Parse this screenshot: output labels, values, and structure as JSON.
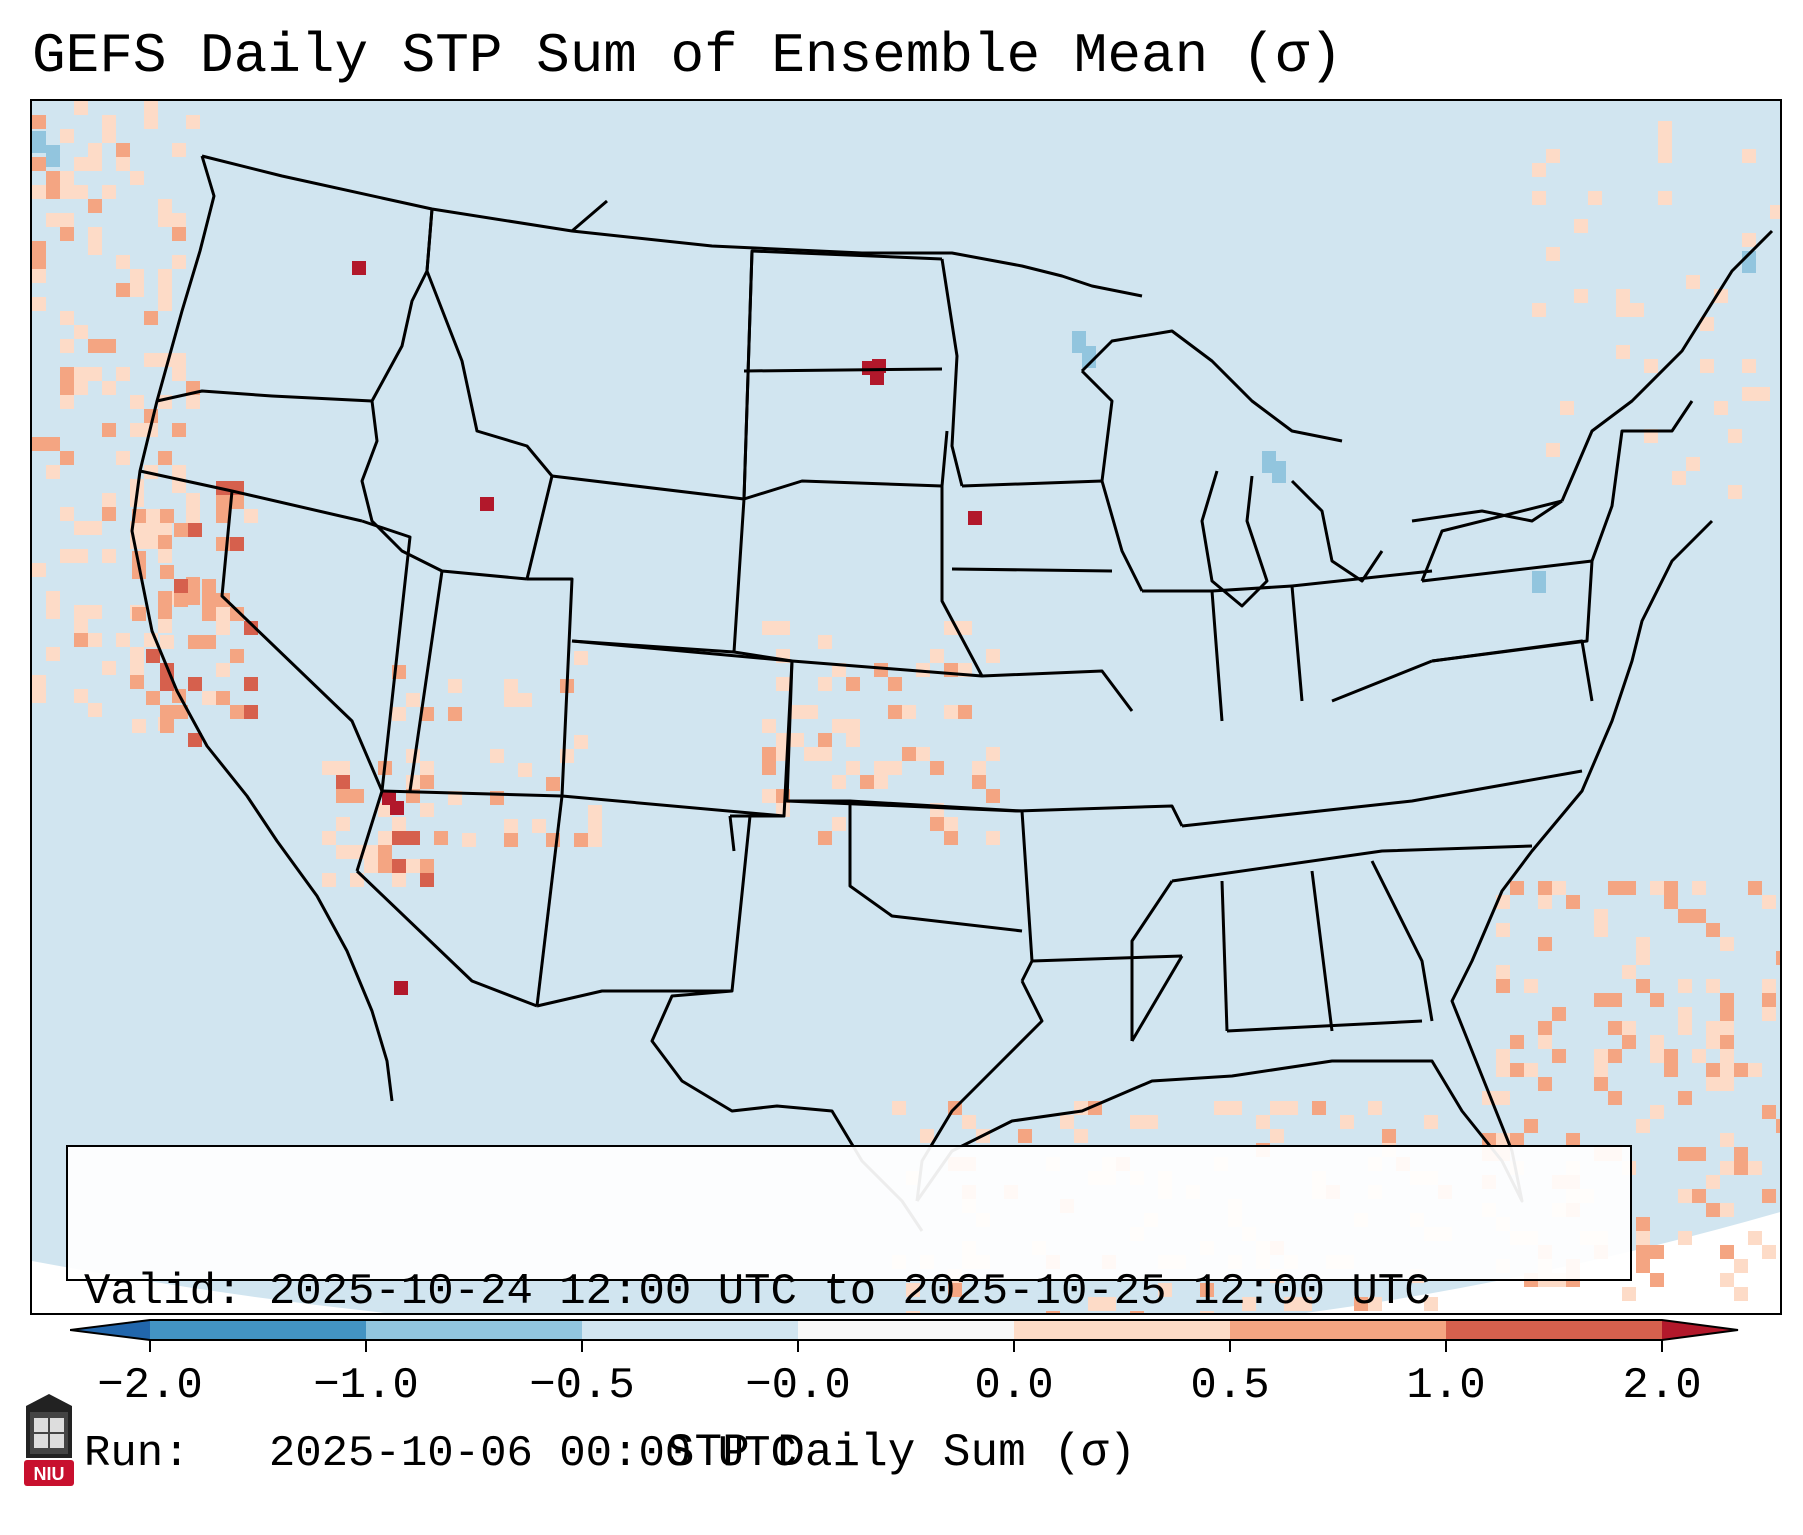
{
  "title": "GEFS Daily STP Sum of Ensemble Mean (σ)",
  "info": {
    "valid_line": "Valid: 2025-10-24 12:00 UTC to 2025-10-25 12:00 UTC",
    "run_line": "Run:   2025-10-06 00:00 UTC"
  },
  "colorbar": {
    "label": "STP Daily Sum (σ)",
    "ticks": [
      "−2.0",
      "−1.0",
      "−0.5",
      "−0.0",
      "0.0",
      "0.5",
      "1.0",
      "2.0"
    ],
    "colors": [
      "#4393c3",
      "#92c5de",
      "#d1e5f0",
      "#f7f7f7",
      "#fddbc7",
      "#f4a582",
      "#d6604d"
    ],
    "under_color": "#2166ac",
    "over_color": "#b2182b"
  },
  "map": {
    "region": "CONUS",
    "background_color": "#d1e5f0",
    "outside_color": "#ffffff"
  },
  "logo": {
    "text": "NIU",
    "color": "#c8102e"
  }
}
